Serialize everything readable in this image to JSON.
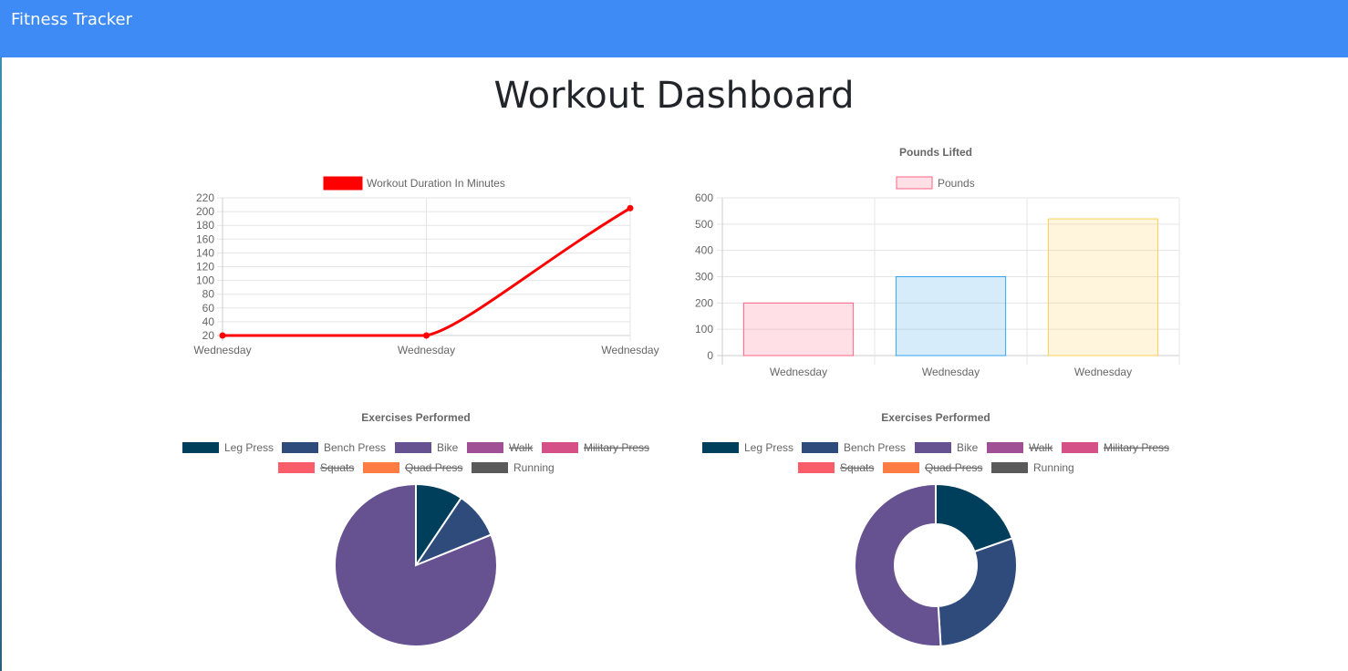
{
  "navbar": {
    "brand": "Fitness Tracker"
  },
  "page": {
    "title": "Workout Dashboard"
  },
  "colors": {
    "navbar": "#3e8bf5",
    "line": "#ff0000"
  },
  "chart_data": [
    {
      "id": "duration",
      "type": "line",
      "title": "",
      "legend": [
        "Workout Duration In Minutes"
      ],
      "categories": [
        "Wednesday",
        "Wednesday",
        "Wednesday"
      ],
      "values": [
        20,
        20,
        205
      ],
      "yticks": [
        20,
        40,
        60,
        80,
        100,
        120,
        140,
        160,
        180,
        200,
        220
      ],
      "ylim": [
        20,
        220
      ],
      "color": "#ff0000"
    },
    {
      "id": "pounds",
      "type": "bar",
      "title": "Pounds Lifted",
      "legend": [
        "Pounds"
      ],
      "categories": [
        "Wednesday",
        "Wednesday",
        "Wednesday"
      ],
      "values": [
        200,
        300,
        520
      ],
      "yticks": [
        0,
        100,
        200,
        300,
        400,
        500,
        600
      ],
      "ylim": [
        0,
        600
      ],
      "fills": [
        "rgba(255,99,132,0.2)",
        "rgba(54,162,235,0.2)",
        "rgba(255,206,86,0.2)"
      ],
      "borders": [
        "#ff6384",
        "#36a2eb",
        "#ffce56"
      ]
    },
    {
      "id": "exercises-pie",
      "type": "pie",
      "title": "Exercises Performed",
      "labels": [
        "Leg Press",
        "Bench Press",
        "Bike",
        "Walk",
        "Military Press",
        "Squats",
        "Quad Press",
        "Running"
      ],
      "hidden": [
        false,
        false,
        false,
        true,
        true,
        true,
        true,
        false
      ],
      "colors": [
        "#003f5c",
        "#2f4b7c",
        "#665191",
        "#a05195",
        "#d45087",
        "#f95d6a",
        "#ff7c43",
        "#5a5a5a"
      ],
      "values": [
        25,
        25,
        215,
        0,
        0,
        0,
        0,
        0
      ]
    },
    {
      "id": "exercises-doughnut",
      "type": "doughnut",
      "title": "Exercises Performed",
      "labels": [
        "Leg Press",
        "Bench Press",
        "Bike",
        "Walk",
        "Military Press",
        "Squats",
        "Quad Press",
        "Running"
      ],
      "hidden": [
        false,
        false,
        false,
        true,
        true,
        true,
        true,
        false
      ],
      "colors": [
        "#003f5c",
        "#2f4b7c",
        "#665191",
        "#a05195",
        "#d45087",
        "#f95d6a",
        "#ff7c43",
        "#5a5a5a"
      ],
      "values": [
        200,
        300,
        520,
        0,
        0,
        0,
        0,
        0
      ]
    }
  ]
}
